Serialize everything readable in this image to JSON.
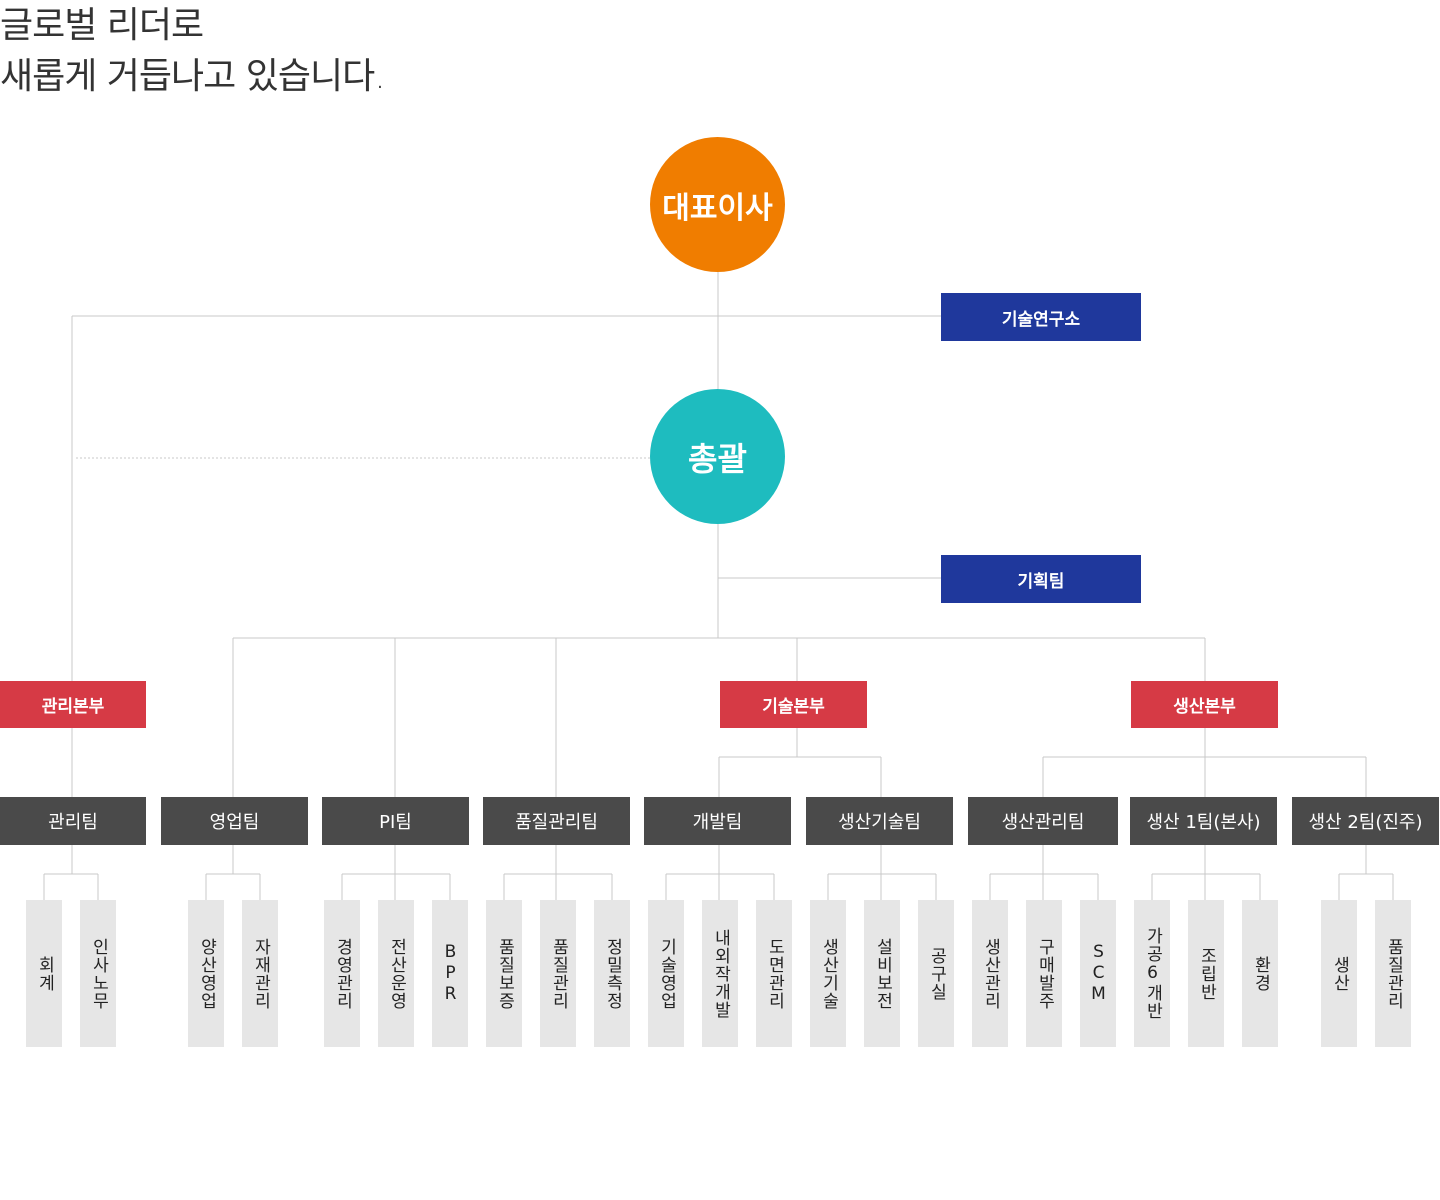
{
  "headline": {
    "line1": "글로벌 리더로",
    "line2": "새롭게 거듭나고 있습니다."
  },
  "colors": {
    "ceo": "#f07d00",
    "general": "#1ebcbf",
    "staff": "#1f389c",
    "division": "#d63a45",
    "team": "#4a4a4a",
    "unit": "#e6e6e6",
    "line": "#c8c8c8"
  },
  "org": {
    "ceo": "대표이사",
    "general": "총괄",
    "lab": "기술연구소",
    "planning": "기획팀",
    "divisions": {
      "admin": "관리본부",
      "tech": "기술본부",
      "production": "생산본부"
    },
    "teams": {
      "admin": "관리팀",
      "sales": "영업팀",
      "pi": "PI팀",
      "quality": "품질관리팀",
      "dev": "개발팀",
      "prodtech": "생산기술팀",
      "prodmgmt": "생산관리팀",
      "prod1": "생산 1팀(본사)",
      "prod2": "생산 2팀(진주)"
    },
    "units": {
      "admin": [
        "회계",
        "인사노무"
      ],
      "sales": [
        "양산영업",
        "자재관리"
      ],
      "pi": [
        "경영관리",
        "전산운영",
        "BPR"
      ],
      "quality": [
        "품질보증",
        "품질관리",
        "정밀측정"
      ],
      "dev": [
        "기술영업",
        "내외작개발",
        "도면관리"
      ],
      "prodtech": [
        "생산기술",
        "설비보전",
        "공구실"
      ],
      "prodmgmt": [
        "생산관리",
        "구매발주",
        "SCM"
      ],
      "prod1": [
        "가공6개반",
        "조립반",
        "환경"
      ],
      "prod2": [
        "생산",
        "품질관리"
      ]
    }
  }
}
